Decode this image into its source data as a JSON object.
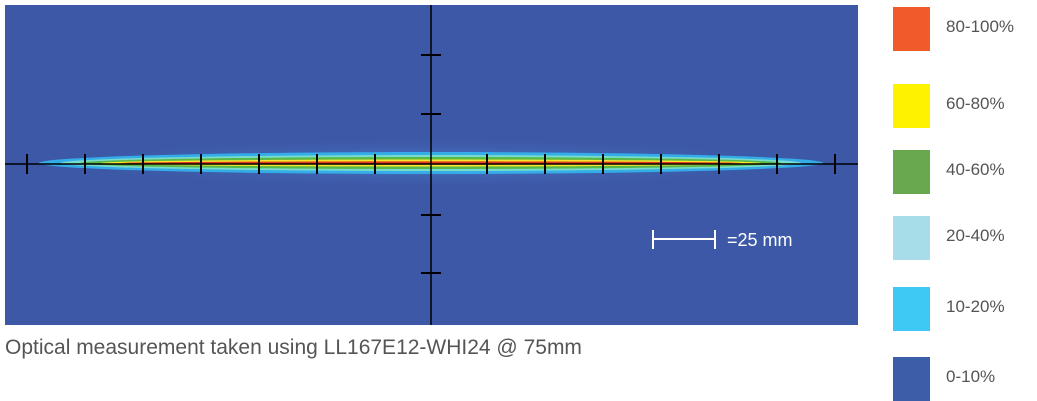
{
  "scale": {
    "label": "=25 mm"
  },
  "caption": "Optical measurement taken using LL167E12-WHI24 @ 75mm",
  "legend": [
    {
      "label": "80-100%",
      "color": "#f15a29"
    },
    {
      "label": "60-80%",
      "color": "#fff200"
    },
    {
      "label": "40-60%",
      "color": "#6aa84f"
    },
    {
      "label": "20-40%",
      "color": "#a7dde8"
    },
    {
      "label": "10-20%",
      "color": "#3ec8f4"
    },
    {
      "label": "0-10%",
      "color": "#3c5ea8"
    }
  ],
  "colors": {
    "background": "#3c58a6",
    "axis": "#000000",
    "scale_bar": "#ffffff"
  }
}
